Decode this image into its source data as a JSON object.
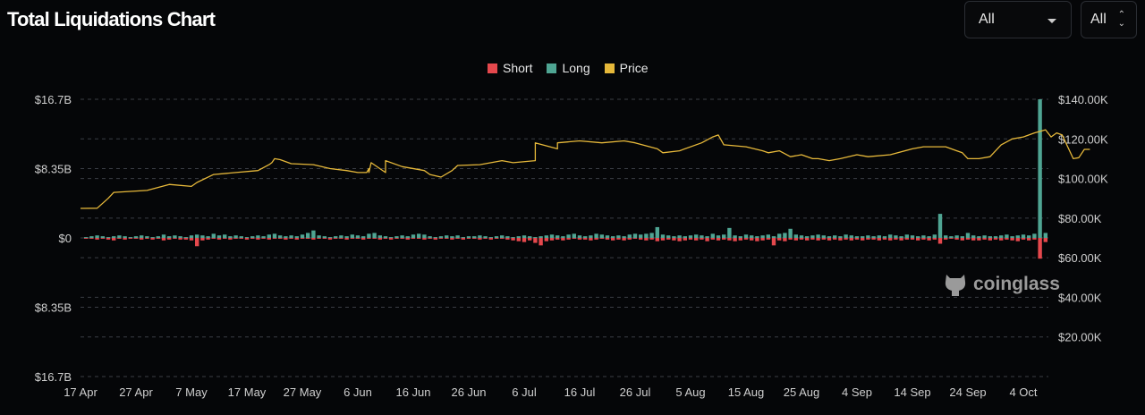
{
  "header": {
    "title": "Total Liquidations Chart"
  },
  "controls": {
    "range_select": "All",
    "coin_select": "All"
  },
  "watermark": "coinglass",
  "colors": {
    "short": "#e5484d",
    "long": "#4fa593",
    "price": "#e6b83a",
    "grid": "#3a3d44"
  },
  "chart_data": {
    "type": "bar",
    "title": "Total Liquidations Chart",
    "legend": [
      {
        "name": "Short",
        "color": "#e5484d"
      },
      {
        "name": "Long",
        "color": "#4fa593"
      },
      {
        "name": "Price",
        "color": "#e6b83a"
      }
    ],
    "legend_position": "top-center",
    "grid": true,
    "left_axis": {
      "ticks": [
        "$16.7B",
        "$8.35B",
        "$0",
        "$8.35B",
        "$16.7B"
      ],
      "range_billion": [
        -16.7,
        16.7
      ]
    },
    "right_axis": {
      "ticks": [
        "$140.00K",
        "$120.00K",
        "$100.00K",
        "$80.00K",
        "$60.00K",
        "$40.00K",
        "$20.00K"
      ],
      "range_thousand": [
        0,
        140
      ]
    },
    "x_ticks": [
      "17 Apr",
      "27 Apr",
      "7 May",
      "17 May",
      "27 May",
      "6 Jun",
      "16 Jun",
      "26 Jun",
      "6 Jul",
      "16 Jul",
      "26 Jul",
      "5 Aug",
      "15 Aug",
      "25 Aug",
      "4 Sep",
      "14 Sep",
      "24 Sep",
      "4 Oct"
    ],
    "x_days_start": "17 Apr",
    "long_billion": [
      0.1,
      0.2,
      0.3,
      0.2,
      0.1,
      0.2,
      0.3,
      0.2,
      0.1,
      0.2,
      0.3,
      0.2,
      0.1,
      0.2,
      0.4,
      0.2,
      0.3,
      0.2,
      0.1,
      0.3,
      0.4,
      0.3,
      0.2,
      0.5,
      0.3,
      0.4,
      0.2,
      0.3,
      0.2,
      0.1,
      0.2,
      0.3,
      0.2,
      0.4,
      0.5,
      0.3,
      0.2,
      0.3,
      0.2,
      0.4,
      0.6,
      0.9,
      0.3,
      0.2,
      0.1,
      0.2,
      0.3,
      0.2,
      0.4,
      0.3,
      0.2,
      0.5,
      0.6,
      0.3,
      0.2,
      0.1,
      0.2,
      0.3,
      0.2,
      0.4,
      0.5,
      0.4,
      0.2,
      0.1,
      0.2,
      0.3,
      0.2,
      0.3,
      0.1,
      0.2,
      0.2,
      0.3,
      0.2,
      0.1,
      0.2,
      0.3,
      0.2,
      0.1,
      0.2,
      0.3,
      0.2,
      0.1,
      0.2,
      0.3,
      0.4,
      0.3,
      0.2,
      0.4,
      0.5,
      0.3,
      0.2,
      0.3,
      0.5,
      0.4,
      0.3,
      0.2,
      0.3,
      0.2,
      0.4,
      0.5,
      0.4,
      0.5,
      0.6,
      1.3,
      0.4,
      0.3,
      0.2,
      0.3,
      0.2,
      0.3,
      0.4,
      0.3,
      0.2,
      0.5,
      0.3,
      0.4,
      1.2,
      0.3,
      0.2,
      0.4,
      0.3,
      0.2,
      0.3,
      0.4,
      0.2,
      0.5,
      0.6,
      1.1,
      0.4,
      0.3,
      0.2,
      0.3,
      0.4,
      0.3,
      0.2,
      0.3,
      0.2,
      0.4,
      0.3,
      0.2,
      0.2,
      0.3,
      0.2,
      0.3,
      0.2,
      0.4,
      0.3,
      0.2,
      0.4,
      0.3,
      0.2,
      0.3,
      0.2,
      0.4,
      2.9,
      0.3,
      0.2,
      0.3,
      0.2,
      0.6,
      0.3,
      0.2,
      0.3,
      0.2,
      0.2,
      0.3,
      0.4,
      0.2,
      0.3,
      0.4,
      0.3,
      0.5,
      16.7,
      0.6
    ],
    "short_billion": [
      0.1,
      0.1,
      0.2,
      0.1,
      0.2,
      0.3,
      0.1,
      0.2,
      0.1,
      0.1,
      0.2,
      0.1,
      0.2,
      0.1,
      0.3,
      0.2,
      0.1,
      0.2,
      0.2,
      0.3,
      1.0,
      0.3,
      0.2,
      0.1,
      0.2,
      0.1,
      0.2,
      0.1,
      0.1,
      0.2,
      0.1,
      0.2,
      0.1,
      0.2,
      0.1,
      0.1,
      0.2,
      0.1,
      0.2,
      0.1,
      0.1,
      0.2,
      0.1,
      0.1,
      0.2,
      0.1,
      0.1,
      0.2,
      0.1,
      0.1,
      0.2,
      0.1,
      0.1,
      0.2,
      0.1,
      0.2,
      0.1,
      0.1,
      0.2,
      0.1,
      0.1,
      0.2,
      0.1,
      0.2,
      0.1,
      0.1,
      0.2,
      0.1,
      0.2,
      0.1,
      0.1,
      0.2,
      0.1,
      0.2,
      0.1,
      0.1,
      0.2,
      0.3,
      0.4,
      0.5,
      0.3,
      0.6,
      0.9,
      0.4,
      0.3,
      0.2,
      0.3,
      0.2,
      0.1,
      0.2,
      0.2,
      0.3,
      0.2,
      0.1,
      0.2,
      0.3,
      0.2,
      0.3,
      0.2,
      0.1,
      0.2,
      0.3,
      0.2,
      0.4,
      0.3,
      0.2,
      0.3,
      0.4,
      0.3,
      0.2,
      0.3,
      0.2,
      0.4,
      0.2,
      0.3,
      0.2,
      0.3,
      0.4,
      0.3,
      0.2,
      0.3,
      0.4,
      0.3,
      0.2,
      0.9,
      0.3,
      0.4,
      0.2,
      0.3,
      0.2,
      0.3,
      0.2,
      0.3,
      0.2,
      0.3,
      0.2,
      0.3,
      0.2,
      0.3,
      0.2,
      0.3,
      0.2,
      0.2,
      0.3,
      0.2,
      0.3,
      0.2,
      0.3,
      0.2,
      0.2,
      0.3,
      0.2,
      0.3,
      0.2,
      0.7,
      0.2,
      0.1,
      0.2,
      0.3,
      0.2,
      0.3,
      0.3,
      0.2,
      0.3,
      0.2,
      0.3,
      0.2,
      0.3,
      0.4,
      0.2,
      0.3,
      0.2,
      2.5,
      0.5
    ],
    "price_thousand": [
      [
        0,
        84.9
      ],
      [
        3,
        85
      ],
      [
        5,
        90
      ],
      [
        6,
        93
      ],
      [
        12,
        94
      ],
      [
        16,
        97
      ],
      [
        20,
        96
      ],
      [
        21,
        98
      ],
      [
        24,
        102
      ],
      [
        28,
        103
      ],
      [
        32,
        104
      ],
      [
        34,
        107
      ],
      [
        34.5,
        108
      ],
      [
        36,
        109.5
      ],
      [
        35,
        110
      ],
      [
        38,
        107.5
      ],
      [
        42,
        107
      ],
      [
        45,
        105
      ],
      [
        48,
        104
      ],
      [
        50,
        103
      ],
      [
        52,
        105
      ],
      [
        55,
        103
      ],
      [
        51.6,
        103
      ],
      [
        48,
        104
      ],
      [
        52,
        103
      ],
      [
        52.4,
        108
      ],
      [
        55,
        109
      ],
      [
        58,
        106
      ],
      [
        62,
        104
      ],
      [
        63,
        102
      ],
      [
        65,
        100.7
      ],
      [
        67,
        104
      ],
      [
        68,
        106.6
      ],
      [
        72,
        107
      ],
      [
        76,
        109
      ],
      [
        78,
        108
      ],
      [
        82,
        109
      ],
      [
        86,
        115
      ],
      [
        82,
        118
      ],
      [
        86,
        118
      ],
      [
        90,
        119
      ],
      [
        94,
        118
      ],
      [
        98,
        119
      ],
      [
        100,
        118
      ],
      [
        104,
        115
      ],
      [
        105,
        113
      ],
      [
        108,
        114
      ],
      [
        112,
        118
      ],
      [
        114,
        121
      ],
      [
        115,
        122
      ],
      [
        116,
        117
      ],
      [
        120,
        116
      ],
      [
        123,
        114
      ],
      [
        124,
        113
      ],
      [
        126,
        114
      ],
      [
        128,
        111
      ],
      [
        130,
        112
      ],
      [
        132,
        110
      ],
      [
        133,
        110
      ],
      [
        135,
        109
      ],
      [
        137,
        110
      ],
      [
        140,
        112
      ],
      [
        142,
        111
      ],
      [
        146,
        112
      ],
      [
        150,
        115
      ],
      [
        152,
        116
      ],
      [
        156,
        116
      ],
      [
        158,
        114
      ],
      [
        159,
        113
      ],
      [
        160,
        110
      ],
      [
        162,
        110
      ],
      [
        164,
        111
      ],
      [
        166,
        117
      ],
      [
        168,
        120
      ],
      [
        170,
        121
      ],
      [
        172,
        123
      ],
      [
        174,
        124.6
      ],
      [
        175,
        121
      ],
      [
        176,
        123
      ],
      [
        177,
        122
      ],
      [
        178,
        116
      ],
      [
        179,
        110
      ],
      [
        180,
        110.5
      ],
      [
        181,
        114.7
      ],
      [
        182,
        114.7
      ]
    ]
  }
}
